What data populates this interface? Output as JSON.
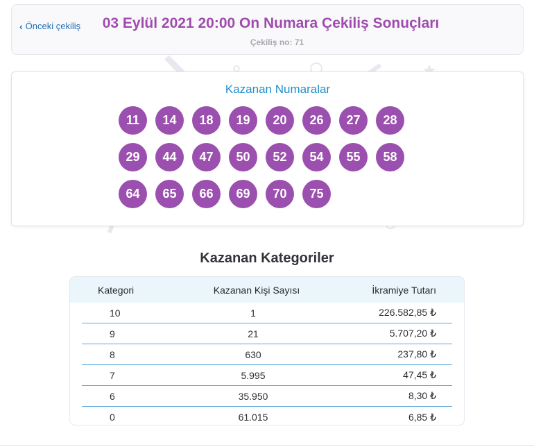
{
  "header": {
    "back_label": "Önceki çekiliş",
    "title": "03 Eylül 2021 20:00 On Numara Çekiliş Sonuçları",
    "draw_number": "Çekiliş no: 71"
  },
  "numbers": {
    "title": "Kazanan Numaralar",
    "values": [
      "11",
      "14",
      "18",
      "19",
      "20",
      "26",
      "27",
      "28",
      "29",
      "44",
      "47",
      "50",
      "52",
      "54",
      "55",
      "58",
      "64",
      "65",
      "66",
      "69",
      "70",
      "75"
    ]
  },
  "categories": {
    "title": "Kazanan Kategoriler",
    "columns": [
      "Kategori",
      "Kazanan Kişi Sayısı",
      "İkramiye Tutarı"
    ],
    "rows": [
      [
        "10",
        "1",
        "226.582,85 ₺"
      ],
      [
        "9",
        "21",
        "5.707,20 ₺"
      ],
      [
        "8",
        "630",
        "237,80 ₺"
      ],
      [
        "7",
        "5.995",
        "47,45 ₺"
      ],
      [
        "6",
        "35.950",
        "8,30 ₺"
      ],
      [
        "0",
        "61.015",
        "6,85 ₺"
      ]
    ]
  },
  "colors": {
    "ball": "#9b4fae",
    "title": "#9f4bae",
    "link": "#1f6fb3",
    "accent": "#1f8fcb",
    "row_divider": "#58a9da"
  }
}
